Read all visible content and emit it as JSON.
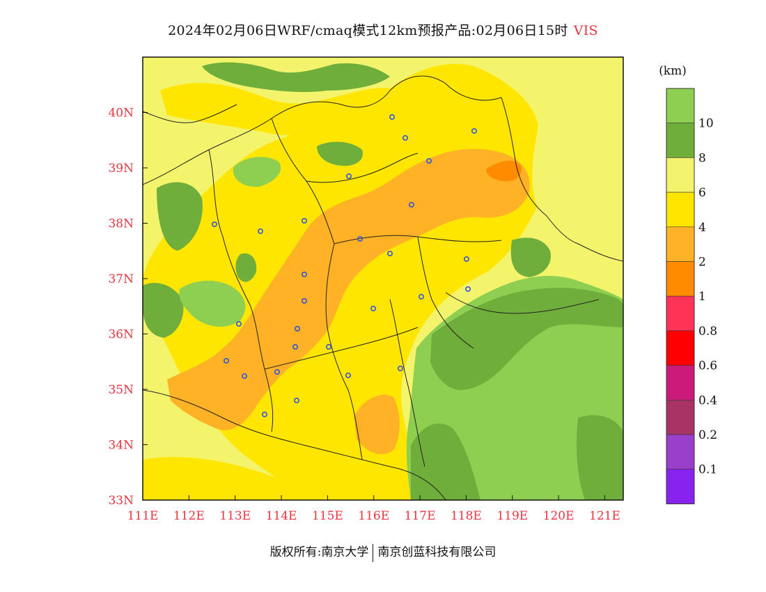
{
  "title": {
    "main": "2024年02月06日WRF/cmaq模式12km预报产品:02月06日15时",
    "variable": "VIS"
  },
  "map": {
    "lat_labels": [
      "40N",
      "39N",
      "38N",
      "37N",
      "36N",
      "35N",
      "34N",
      "33N"
    ],
    "lon_labels": [
      "111E",
      "112E",
      "113E",
      "114E",
      "115E",
      "116E",
      "117E",
      "118E",
      "119E",
      "120E",
      "121E"
    ],
    "region_colors": {
      "background": "#f4f46c",
      "vis_4_6": "#ffe600",
      "vis_2_4": "#ffb226",
      "vis_1_2": "#ff8c00",
      "vis_6_8": "#f4f46c",
      "vis_8_10": "#6fae3a",
      "vis_10_plus": "#8ecf52"
    },
    "station_marker_color": "#3355dd"
  },
  "legend": {
    "unit": "(km)",
    "labels": [
      "10",
      "8",
      "6",
      "4",
      "2",
      "1",
      "0.8",
      "0.6",
      "0.4",
      "0.2",
      "0.1"
    ],
    "colors": [
      "#8ecf52",
      "#6fae3a",
      "#f4f46c",
      "#ffe600",
      "#ffb226",
      "#ff8c00",
      "#ff3355",
      "#ff0000",
      "#cc1a7a",
      "#aa3366",
      "#9a3fcc",
      "#8822ee"
    ]
  },
  "footer": {
    "left": "版权所有:南京大学",
    "right": "南京创蓝科技有限公司"
  }
}
